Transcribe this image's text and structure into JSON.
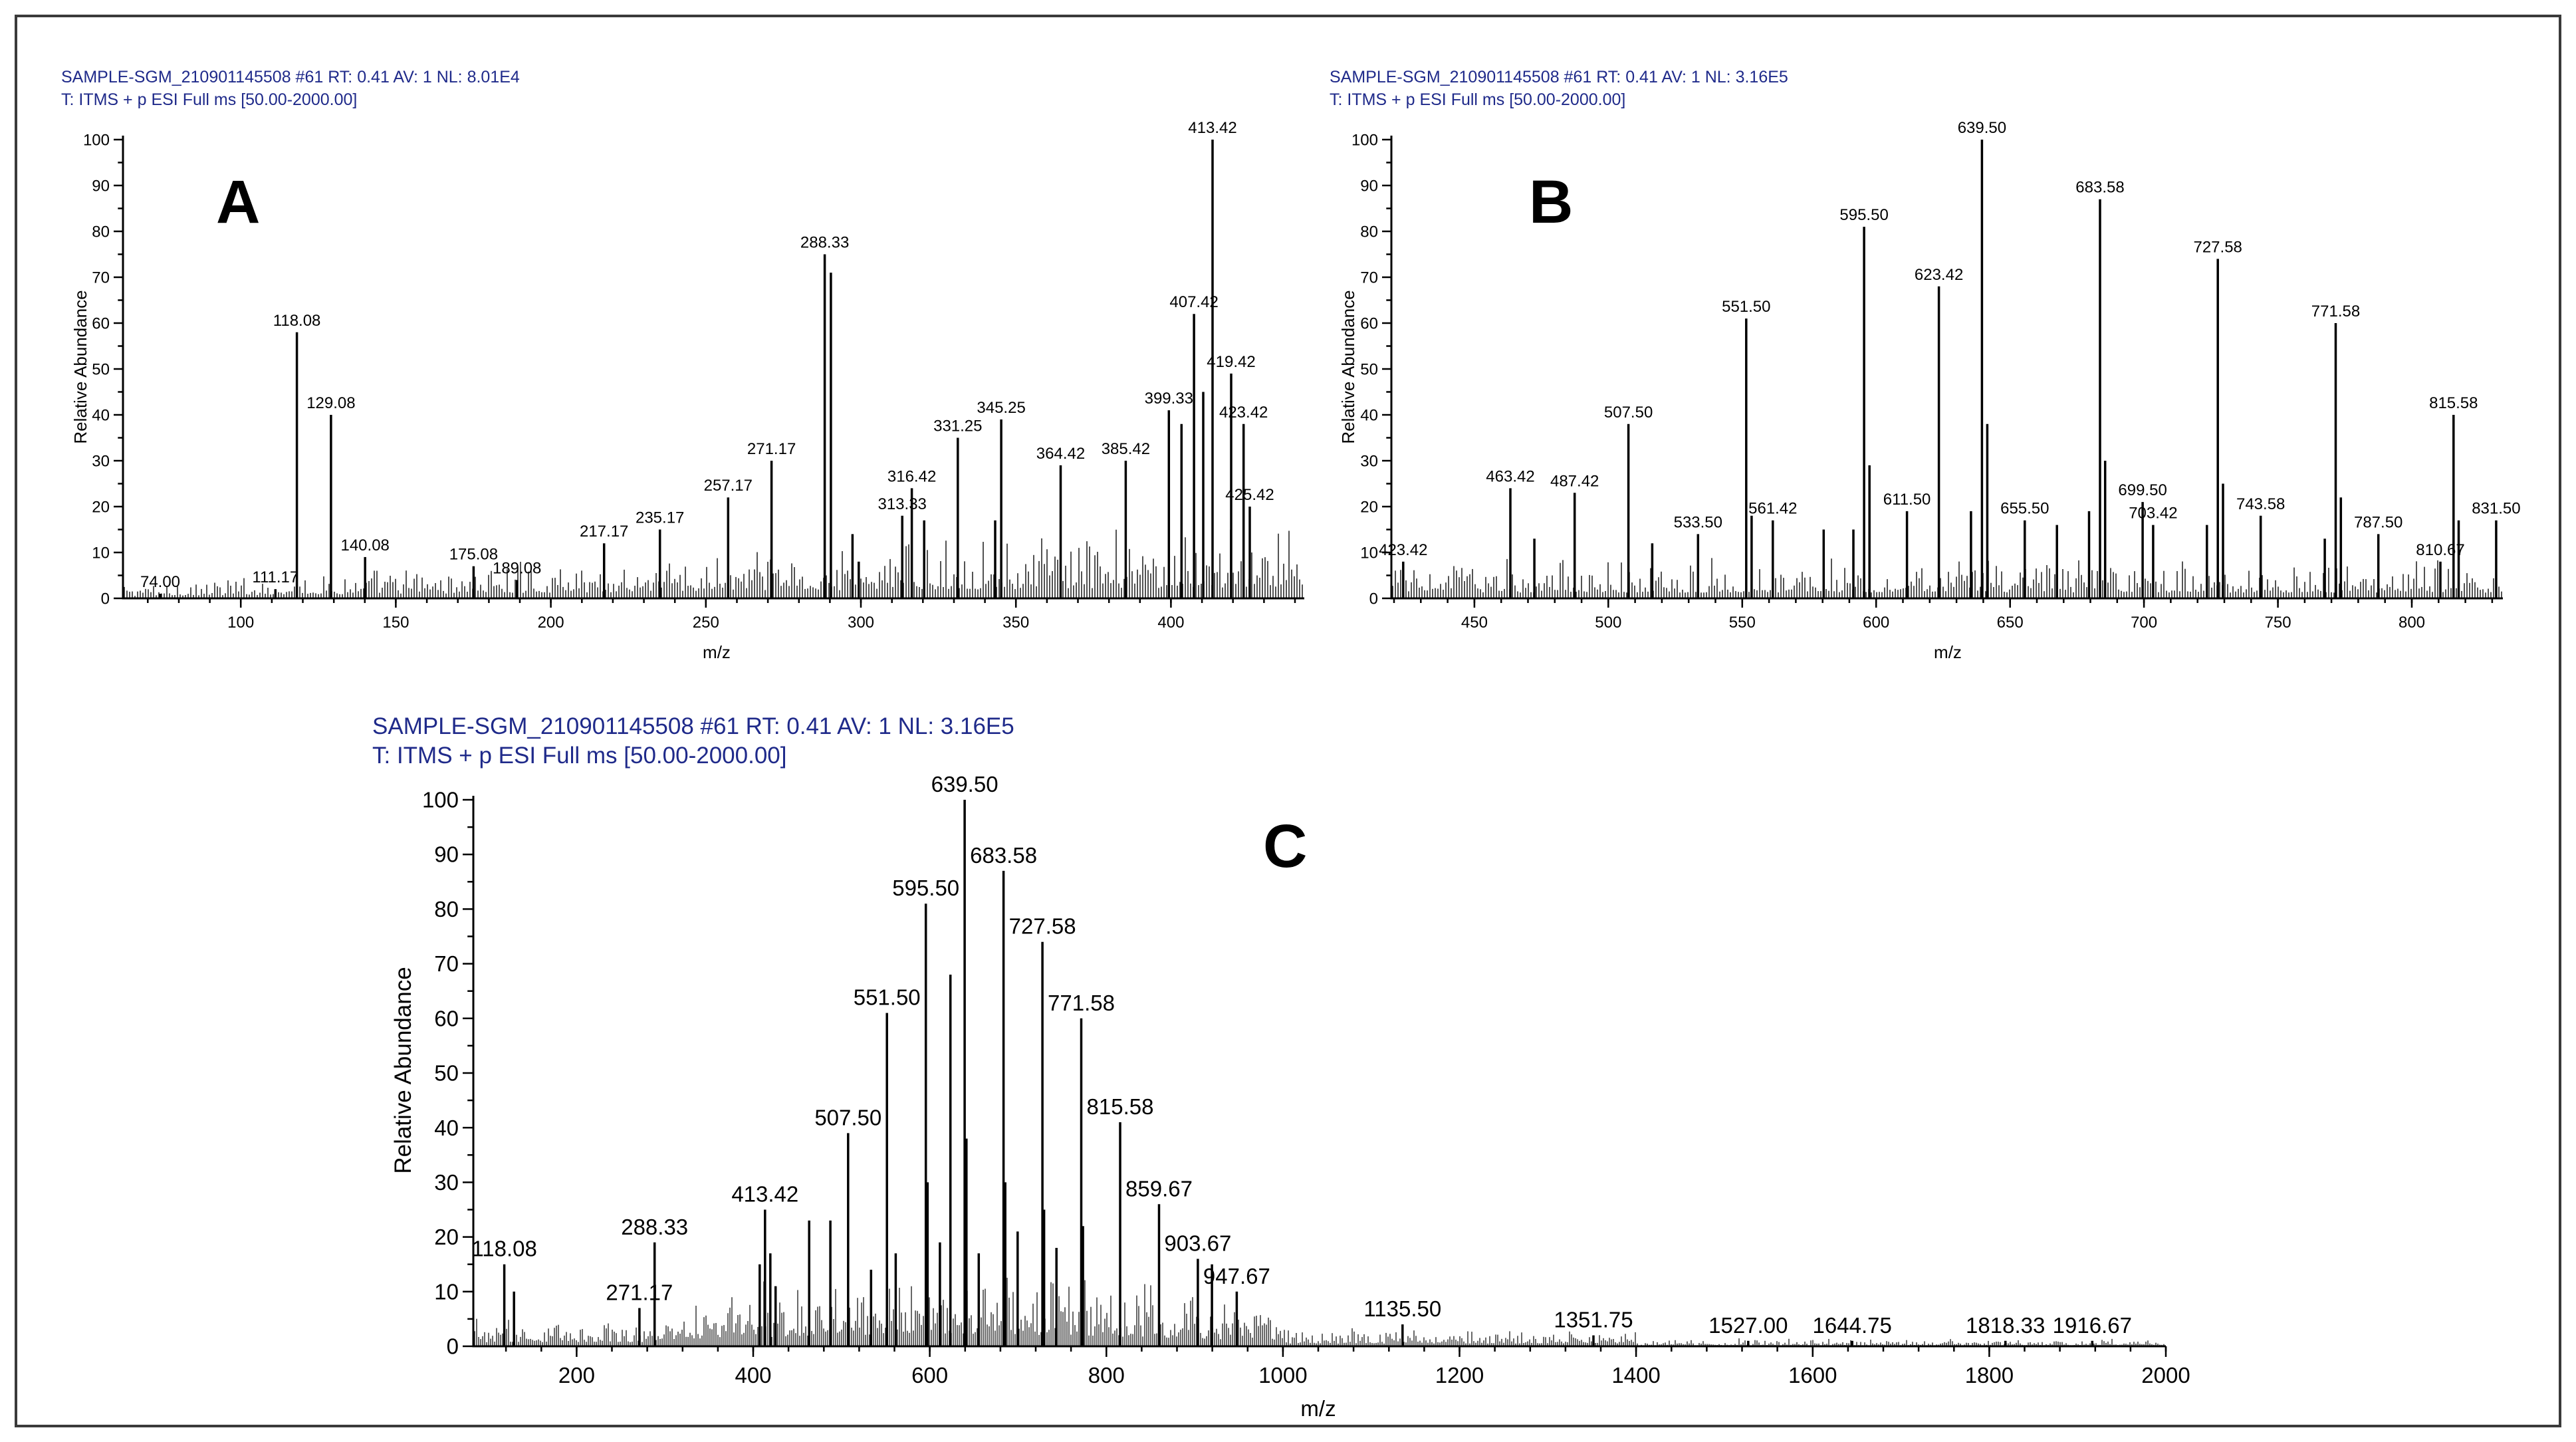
{
  "chart_data": [
    {
      "type": "mass-spectrum",
      "panel_label": "A",
      "header_line1": "SAMPLE-SGM_210901145508 #61  RT: 0.41  AV: 1  NL: 8.01E4",
      "header_line2": "T: ITMS + p ESI Full ms [50.00-2000.00]",
      "xlabel": "m/z",
      "ylabel": "Relative Abundance",
      "xlim": [
        62,
        443
      ],
      "ylim": [
        0,
        100
      ],
      "xticks": [
        100,
        150,
        200,
        250,
        300,
        350,
        400
      ],
      "yticks": [
        0,
        10,
        20,
        30,
        40,
        50,
        60,
        70,
        80,
        90,
        100
      ],
      "peaks": [
        {
          "mz": 74.0,
          "intensity": 1,
          "label": "74.00"
        },
        {
          "mz": 111.17,
          "intensity": 2,
          "label": "111.17"
        },
        {
          "mz": 118.08,
          "intensity": 58,
          "label": "118.08"
        },
        {
          "mz": 129.08,
          "intensity": 40,
          "label": "129.08"
        },
        {
          "mz": 140.08,
          "intensity": 9,
          "label": "140.08"
        },
        {
          "mz": 175.08,
          "intensity": 7,
          "label": "175.08"
        },
        {
          "mz": 189.08,
          "intensity": 4,
          "label": "189.08"
        },
        {
          "mz": 217.17,
          "intensity": 12,
          "label": "217.17"
        },
        {
          "mz": 235.17,
          "intensity": 15,
          "label": "235.17"
        },
        {
          "mz": 257.17,
          "intensity": 22,
          "label": "257.17"
        },
        {
          "mz": 271.17,
          "intensity": 30,
          "label": "271.17"
        },
        {
          "mz": 288.33,
          "intensity": 75,
          "label": "288.33"
        },
        {
          "mz": 290.33,
          "intensity": 71,
          "label": ""
        },
        {
          "mz": 313.33,
          "intensity": 18,
          "label": "313.33"
        },
        {
          "mz": 316.42,
          "intensity": 24,
          "label": "316.42"
        },
        {
          "mz": 331.25,
          "intensity": 35,
          "label": "331.25"
        },
        {
          "mz": 345.25,
          "intensity": 39,
          "label": "345.25"
        },
        {
          "mz": 364.42,
          "intensity": 29,
          "label": "364.42"
        },
        {
          "mz": 385.42,
          "intensity": 30,
          "label": "385.42"
        },
        {
          "mz": 399.33,
          "intensity": 41,
          "label": "399.33"
        },
        {
          "mz": 407.42,
          "intensity": 62,
          "label": "407.42"
        },
        {
          "mz": 413.42,
          "intensity": 100,
          "label": "413.42"
        },
        {
          "mz": 419.42,
          "intensity": 49,
          "label": "419.42"
        },
        {
          "mz": 423.42,
          "intensity": 38,
          "label": "423.42"
        },
        {
          "mz": 425.42,
          "intensity": 20,
          "label": "425.42"
        },
        {
          "mz": 403.4,
          "intensity": 38,
          "label": ""
        },
        {
          "mz": 410.4,
          "intensity": 45,
          "label": ""
        },
        {
          "mz": 297.3,
          "intensity": 14,
          "label": ""
        },
        {
          "mz": 320.4,
          "intensity": 17,
          "label": ""
        },
        {
          "mz": 343.3,
          "intensity": 17,
          "label": ""
        },
        {
          "mz": 299.3,
          "intensity": 8,
          "label": ""
        }
      ]
    },
    {
      "type": "mass-spectrum",
      "panel_label": "B",
      "header_line1": "SAMPLE-SGM_210901145508 #61  RT: 0.41  AV: 1  NL: 3.16E5",
      "header_line2": "T: ITMS + p ESI Full ms [50.00-2000.00]",
      "xlabel": "m/z",
      "ylabel": "Relative Abundance",
      "xlim": [
        419,
        834
      ],
      "ylim": [
        0,
        100
      ],
      "xticks": [
        450,
        500,
        550,
        600,
        650,
        700,
        750,
        800
      ],
      "yticks": [
        0,
        10,
        20,
        30,
        40,
        50,
        60,
        70,
        80,
        90,
        100
      ],
      "peaks": [
        {
          "mz": 423.42,
          "intensity": 8,
          "label": "423.42"
        },
        {
          "mz": 463.42,
          "intensity": 24,
          "label": "463.42"
        },
        {
          "mz": 487.42,
          "intensity": 23,
          "label": "487.42"
        },
        {
          "mz": 507.5,
          "intensity": 38,
          "label": "507.50"
        },
        {
          "mz": 533.5,
          "intensity": 14,
          "label": "533.50"
        },
        {
          "mz": 551.5,
          "intensity": 61,
          "label": "551.50"
        },
        {
          "mz": 561.42,
          "intensity": 17,
          "label": "561.42"
        },
        {
          "mz": 595.5,
          "intensity": 81,
          "label": "595.50"
        },
        {
          "mz": 611.5,
          "intensity": 19,
          "label": "611.50"
        },
        {
          "mz": 623.42,
          "intensity": 68,
          "label": "623.42"
        },
        {
          "mz": 639.5,
          "intensity": 100,
          "label": "639.50"
        },
        {
          "mz": 655.5,
          "intensity": 17,
          "label": "655.50"
        },
        {
          "mz": 683.58,
          "intensity": 87,
          "label": "683.58"
        },
        {
          "mz": 699.5,
          "intensity": 21,
          "label": "699.50"
        },
        {
          "mz": 703.42,
          "intensity": 16,
          "label": "703.42"
        },
        {
          "mz": 727.58,
          "intensity": 74,
          "label": "727.58"
        },
        {
          "mz": 743.58,
          "intensity": 18,
          "label": "743.58"
        },
        {
          "mz": 771.58,
          "intensity": 60,
          "label": "771.58"
        },
        {
          "mz": 787.5,
          "intensity": 14,
          "label": "787.50"
        },
        {
          "mz": 810.67,
          "intensity": 8,
          "label": "810.67"
        },
        {
          "mz": 815.58,
          "intensity": 40,
          "label": "815.58"
        },
        {
          "mz": 831.5,
          "intensity": 17,
          "label": "831.50"
        },
        {
          "mz": 597.5,
          "intensity": 29,
          "label": ""
        },
        {
          "mz": 641.5,
          "intensity": 38,
          "label": ""
        },
        {
          "mz": 685.5,
          "intensity": 30,
          "label": ""
        },
        {
          "mz": 729.5,
          "intensity": 25,
          "label": ""
        },
        {
          "mz": 773.5,
          "intensity": 22,
          "label": ""
        },
        {
          "mz": 553.5,
          "intensity": 18,
          "label": ""
        },
        {
          "mz": 817.5,
          "intensity": 17,
          "label": ""
        },
        {
          "mz": 580.4,
          "intensity": 15,
          "label": ""
        },
        {
          "mz": 591.5,
          "intensity": 15,
          "label": ""
        },
        {
          "mz": 667.5,
          "intensity": 16,
          "label": ""
        },
        {
          "mz": 679.5,
          "intensity": 19,
          "label": ""
        },
        {
          "mz": 472.4,
          "intensity": 13,
          "label": ""
        },
        {
          "mz": 516.4,
          "intensity": 12,
          "label": ""
        },
        {
          "mz": 635.4,
          "intensity": 19,
          "label": ""
        },
        {
          "mz": 723.5,
          "intensity": 16,
          "label": ""
        },
        {
          "mz": 767.5,
          "intensity": 13,
          "label": ""
        }
      ]
    },
    {
      "type": "mass-spectrum",
      "panel_label": "C",
      "header_line1": "SAMPLE-SGM_210901145508 #61  RT: 0.41  AV: 1  NL: 3.16E5",
      "header_line2": "T: ITMS + p ESI Full ms [50.00-2000.00]",
      "xlabel": "m/z",
      "ylabel": "Relative Abundance",
      "xlim": [
        83,
        2000
      ],
      "ylim": [
        0,
        100
      ],
      "xticks": [
        200,
        400,
        600,
        800,
        1000,
        1200,
        1400,
        1600,
        1800,
        2000
      ],
      "yticks": [
        0,
        10,
        20,
        30,
        40,
        50,
        60,
        70,
        80,
        90,
        100
      ],
      "peaks": [
        {
          "mz": 118.08,
          "intensity": 15,
          "label": "118.08"
        },
        {
          "mz": 271.17,
          "intensity": 7,
          "label": "271.17"
        },
        {
          "mz": 288.33,
          "intensity": 19,
          "label": "288.33"
        },
        {
          "mz": 413.42,
          "intensity": 25,
          "label": "413.42"
        },
        {
          "mz": 507.5,
          "intensity": 39,
          "label": "507.50"
        },
        {
          "mz": 551.5,
          "intensity": 61,
          "label": "551.50"
        },
        {
          "mz": 595.5,
          "intensity": 81,
          "label": "595.50"
        },
        {
          "mz": 639.5,
          "intensity": 100,
          "label": "639.50"
        },
        {
          "mz": 683.58,
          "intensity": 87,
          "label": "683.58"
        },
        {
          "mz": 727.58,
          "intensity": 74,
          "label": "727.58"
        },
        {
          "mz": 771.58,
          "intensity": 60,
          "label": "771.58"
        },
        {
          "mz": 815.58,
          "intensity": 41,
          "label": "815.58"
        },
        {
          "mz": 859.67,
          "intensity": 26,
          "label": "859.67"
        },
        {
          "mz": 903.67,
          "intensity": 16,
          "label": "903.67"
        },
        {
          "mz": 947.67,
          "intensity": 10,
          "label": "947.67"
        },
        {
          "mz": 1135.5,
          "intensity": 4,
          "label": "1135.50"
        },
        {
          "mz": 1351.75,
          "intensity": 2,
          "label": "1351.75"
        },
        {
          "mz": 1527.0,
          "intensity": 1,
          "label": "1527.00"
        },
        {
          "mz": 1644.75,
          "intensity": 1,
          "label": "1644.75"
        },
        {
          "mz": 1818.33,
          "intensity": 1,
          "label": "1818.33"
        },
        {
          "mz": 1916.67,
          "intensity": 1,
          "label": "1916.67"
        },
        {
          "mz": 623.4,
          "intensity": 68,
          "label": ""
        },
        {
          "mz": 463.4,
          "intensity": 23,
          "label": ""
        },
        {
          "mz": 487.4,
          "intensity": 23,
          "label": ""
        },
        {
          "mz": 641.5,
          "intensity": 38,
          "label": ""
        },
        {
          "mz": 597.5,
          "intensity": 30,
          "label": ""
        },
        {
          "mz": 685.5,
          "intensity": 30,
          "label": ""
        },
        {
          "mz": 729.5,
          "intensity": 25,
          "label": ""
        },
        {
          "mz": 773.5,
          "intensity": 22,
          "label": ""
        },
        {
          "mz": 611.5,
          "intensity": 19,
          "label": ""
        },
        {
          "mz": 655.5,
          "intensity": 17,
          "label": ""
        },
        {
          "mz": 699.5,
          "intensity": 21,
          "label": ""
        },
        {
          "mz": 743.5,
          "intensity": 18,
          "label": ""
        },
        {
          "mz": 919.6,
          "intensity": 15,
          "label": ""
        },
        {
          "mz": 419.4,
          "intensity": 17,
          "label": ""
        },
        {
          "mz": 407.4,
          "intensity": 15,
          "label": ""
        },
        {
          "mz": 561.4,
          "intensity": 17,
          "label": ""
        },
        {
          "mz": 533.5,
          "intensity": 14,
          "label": ""
        },
        {
          "mz": 425.4,
          "intensity": 11,
          "label": ""
        },
        {
          "mz": 129.08,
          "intensity": 10,
          "label": ""
        }
      ]
    }
  ]
}
